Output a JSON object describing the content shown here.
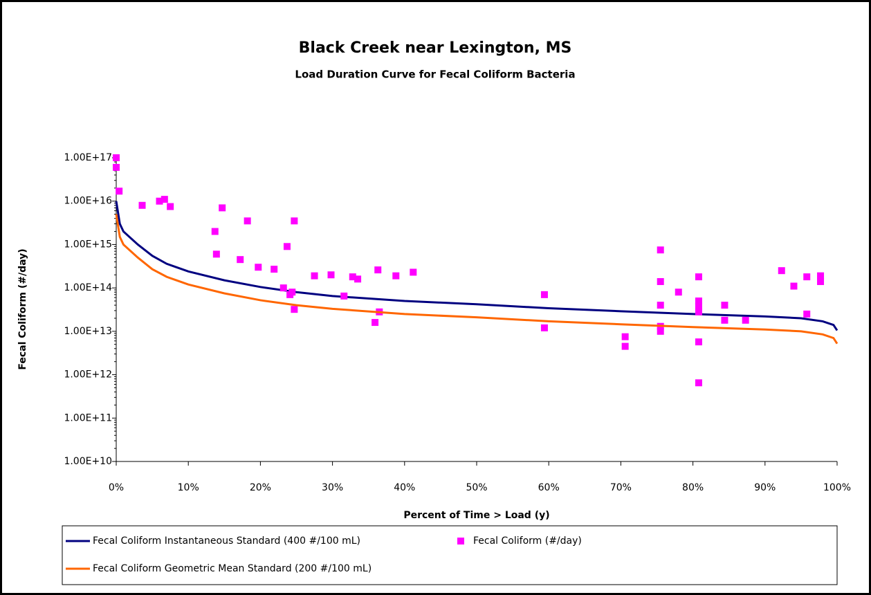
{
  "chart_data": {
    "type": "line",
    "title": "Black Creek near Lexington, MS",
    "subtitle": "Load Duration Curve for Fecal Coliform Bacteria",
    "xlabel": "Percent of Time > Load (y)",
    "ylabel": "Fecal Coliform (#/day)",
    "log_y": true,
    "legend": "bottom",
    "xlim": [
      0,
      100
    ],
    "xticks": [
      {
        "value": 0,
        "label": "0%"
      },
      {
        "value": 10,
        "label": "10%"
      },
      {
        "value": 20,
        "label": "20%"
      },
      {
        "value": 30,
        "label": "30%"
      },
      {
        "value": 40,
        "label": "40%"
      },
      {
        "value": 50,
        "label": "50%"
      },
      {
        "value": 60,
        "label": "60%"
      },
      {
        "value": 70,
        "label": "70%"
      },
      {
        "value": 80,
        "label": "80%"
      },
      {
        "value": 90,
        "label": "90%"
      },
      {
        "value": 100,
        "label": "100%"
      }
    ],
    "ylim": [
      10000000000.0,
      1e+17
    ],
    "yticks": [
      {
        "value": 10000000000.0,
        "label": "1.00E+10"
      },
      {
        "value": 100000000000.0,
        "label": "1.00E+11"
      },
      {
        "value": 1000000000000.0,
        "label": "1.00E+12"
      },
      {
        "value": 10000000000000.0,
        "label": "1.00E+13"
      },
      {
        "value": 100000000000000.0,
        "label": "1.00E+14"
      },
      {
        "value": 1000000000000000.0,
        "label": "1.00E+15"
      },
      {
        "value": 1e+16,
        "label": "1.00E+16"
      },
      {
        "value": 1e+17,
        "label": "1.00E+17"
      }
    ],
    "series": [
      {
        "name": "Fecal Coliform Instantaneous Standard (400 #/100 mL)",
        "type": "line",
        "color": "#000080",
        "x": [
          0,
          0.5,
          1,
          3,
          5,
          7,
          10,
          15,
          20,
          25,
          30,
          40,
          50,
          60,
          70,
          80,
          90,
          95,
          98,
          99.5,
          100
        ],
        "values": [
          1e+16,
          3000000000000000.0,
          2000000000000000.0,
          1000000000000000.0,
          550000000000000.0,
          360000000000000.0,
          240000000000000.0,
          150000000000000.0,
          105000000000000.0,
          80000000000000.0,
          65000000000000.0,
          50000000000000.0,
          42000000000000.0,
          34000000000000.0,
          29000000000000.0,
          25000000000000.0,
          22000000000000.0,
          20000000000000.0,
          17000000000000.0,
          14000000000000.0,
          10500000000000.0
        ]
      },
      {
        "name": "Fecal Coliform (#/day)",
        "type": "scatter",
        "color": "#ff00ff",
        "x": [
          0,
          0,
          0.4,
          3.6,
          6,
          6.7,
          7.5,
          13.7,
          14.7,
          13.9,
          18.2,
          17.2,
          19.7,
          21.9,
          23.7,
          24.7,
          23.2,
          24.4,
          24.1,
          24.7,
          27.5,
          29.8,
          31.6,
          32.8,
          33.5,
          35.9,
          36.3,
          36.5,
          38.8,
          41.2,
          59.4,
          59.4,
          70.6,
          70.6,
          75.5,
          75.5,
          75.5,
          75.5,
          75.5,
          78,
          80.8,
          80.8,
          80.8,
          80.8,
          80.8,
          80.8,
          84.4,
          84.4,
          87.3,
          92.3,
          94,
          95.8,
          95.8,
          97.7,
          97.7
        ],
        "values": [
          1e+17,
          6e+16,
          1.7e+16,
          8000000000000000.0,
          1e+16,
          1.1e+16,
          7500000000000000.0,
          2000000000000000.0,
          7000000000000000.0,
          600000000000000.0,
          3500000000000000.0,
          450000000000000.0,
          300000000000000.0,
          270000000000000.0,
          900000000000000.0,
          3500000000000000.0,
          100000000000000.0,
          80000000000000.0,
          70000000000000.0,
          32000000000000.0,
          190000000000000.0,
          200000000000000.0,
          65000000000000.0,
          180000000000000.0,
          160000000000000.0,
          16000000000000.0,
          260000000000000.0,
          28000000000000.0,
          190000000000000.0,
          230000000000000.0,
          70000000000000.0,
          12000000000000.0,
          7500000000000.0,
          4500000000000.0,
          750000000000000.0,
          140000000000000.0,
          40000000000000.0,
          13000000000000.0,
          10000000000000.0,
          80000000000000.0,
          180000000000000.0,
          50000000000000.0,
          38000000000000.0,
          28000000000000.0,
          5700000000000.0,
          650000000000.0,
          40000000000000.0,
          18000000000000.0,
          18000000000000.0,
          250000000000000.0,
          110000000000000.0,
          180000000000000.0,
          25000000000000.0,
          190000000000000.0,
          140000000000000.0
        ]
      },
      {
        "name": "Fecal Coliform Geometric Mean Standard  (200 #/100 mL)",
        "type": "line",
        "color": "#ff6600",
        "x": [
          0,
          0.5,
          1,
          3,
          5,
          7,
          10,
          15,
          20,
          25,
          30,
          40,
          50,
          60,
          70,
          80,
          90,
          95,
          98,
          99.5,
          100
        ],
        "values": [
          5000000000000000.0,
          1500000000000000.0,
          1000000000000000.0,
          500000000000000.0,
          270000000000000.0,
          180000000000000.0,
          120000000000000.0,
          75000000000000.0,
          52000000000000.0,
          40000000000000.0,
          33000000000000.0,
          25000000000000.0,
          21000000000000.0,
          17000000000000.0,
          14500000000000.0,
          12500000000000.0,
          11000000000000.0,
          10000000000000.0,
          8500000000000.0,
          7000000000000.0,
          5200000000000.0
        ]
      }
    ]
  }
}
